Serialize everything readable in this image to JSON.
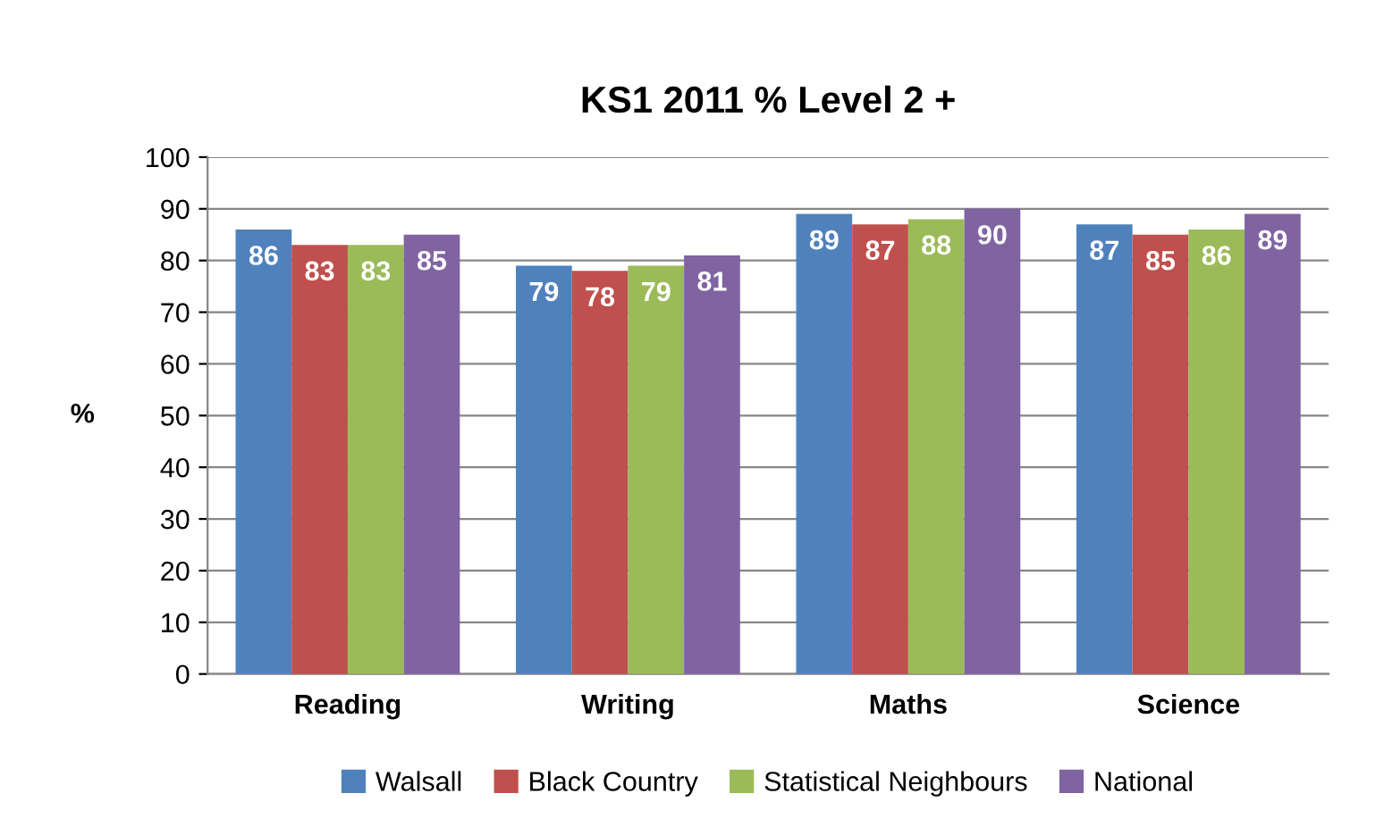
{
  "chart_data": {
    "type": "bar",
    "title": "KS1 2011 % Level 2 +",
    "ylabel": "%",
    "categories": [
      "Reading",
      "Writing",
      "Maths",
      "Science"
    ],
    "series": [
      {
        "name": "Walsall",
        "color": "#4f81bd",
        "values": [
          86,
          79,
          89,
          87
        ]
      },
      {
        "name": "Black Country",
        "color": "#c0504d",
        "values": [
          83,
          78,
          87,
          85
        ]
      },
      {
        "name": "Statistical Neighbours",
        "color": "#9bbb59",
        "values": [
          83,
          79,
          88,
          86
        ]
      },
      {
        "name": "National",
        "color": "#8064a2",
        "values": [
          85,
          81,
          90,
          89
        ]
      }
    ],
    "ylim": [
      0,
      100
    ],
    "yticks": [
      0,
      10,
      20,
      30,
      40,
      50,
      60,
      70,
      80,
      90,
      100
    ],
    "grid": "y",
    "legend": "bottom",
    "data_labels": true
  }
}
